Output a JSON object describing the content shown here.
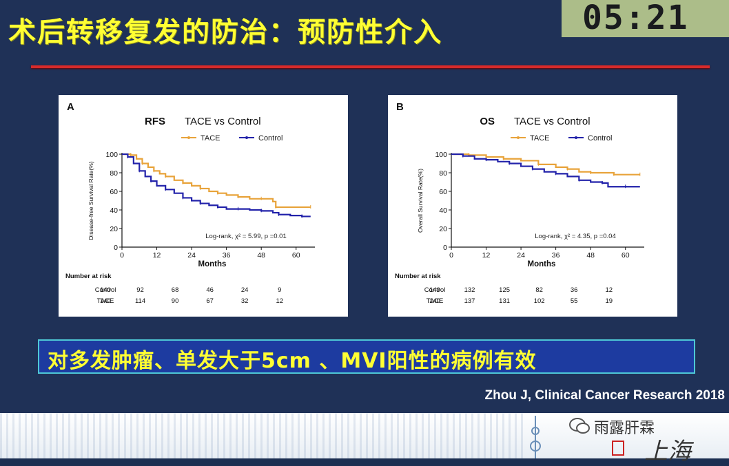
{
  "slide": {
    "title": "术后转移复发的防治：预防性介入",
    "timer": "05:21",
    "banner": "对多发肿瘤、单发大于5cm 、MVI阳性的病例有效",
    "citation": "Zhou J, Clinical Cancer Research 2018",
    "watermark": "雨露肝霖",
    "signature": "上海",
    "colors": {
      "background": "#1f3157",
      "title": "#ffff33",
      "rule": "#d72a2a",
      "banner": "#1d3ba0",
      "tace": "#e8a33a",
      "control": "#2222aa"
    }
  },
  "chart_data": [
    {
      "type": "line",
      "panel_label": "A",
      "title_left": "RFS",
      "title_right": "TACE vs Control",
      "xlabel": "Months",
      "ylabel": "Disease-free Survival Rate(%)",
      "xlim": [
        0,
        66
      ],
      "ylim": [
        0,
        100
      ],
      "xticks": [
        "0",
        "12",
        "24",
        "36",
        "48",
        "60"
      ],
      "yticks": [
        "0",
        "20",
        "40",
        "60",
        "80",
        "100"
      ],
      "annotation": "Log-rank, χ² = 5.99, p =0.01",
      "legend_position": "top-center",
      "series": [
        {
          "name": "TACE",
          "color": "#e8a33a",
          "points": [
            [
              0,
              100
            ],
            [
              3,
              99
            ],
            [
              5,
              95
            ],
            [
              7,
              90
            ],
            [
              9,
              86
            ],
            [
              11,
              82
            ],
            [
              13,
              79
            ],
            [
              15,
              76
            ],
            [
              18,
              72
            ],
            [
              21,
              69
            ],
            [
              24,
              66
            ],
            [
              27,
              63
            ],
            [
              30,
              60
            ],
            [
              33,
              58
            ],
            [
              36,
              56
            ],
            [
              40,
              54
            ],
            [
              44,
              52
            ],
            [
              48,
              52
            ],
            [
              52,
              49
            ],
            [
              53,
              43
            ],
            [
              60,
              43
            ],
            [
              65,
              43
            ]
          ]
        },
        {
          "name": "Control",
          "color": "#2222aa",
          "points": [
            [
              0,
              100
            ],
            [
              2,
              97
            ],
            [
              4,
              90
            ],
            [
              6,
              82
            ],
            [
              8,
              76
            ],
            [
              10,
              71
            ],
            [
              12,
              66
            ],
            [
              15,
              62
            ],
            [
              18,
              58
            ],
            [
              21,
              53
            ],
            [
              24,
              50
            ],
            [
              27,
              47
            ],
            [
              30,
              45
            ],
            [
              33,
              43
            ],
            [
              36,
              41
            ],
            [
              40,
              41
            ],
            [
              44,
              40
            ],
            [
              48,
              39
            ],
            [
              52,
              37
            ],
            [
              54,
              35
            ],
            [
              58,
              34
            ],
            [
              62,
              33
            ],
            [
              65,
              33
            ]
          ]
        }
      ],
      "risk_table": {
        "header": "Number at risk",
        "rows": [
          {
            "label": "Control",
            "values": [
              "140",
              "92",
              "68",
              "46",
              "24",
              "9"
            ]
          },
          {
            "label": "TACE",
            "values": [
              "140",
              "114",
              "90",
              "67",
              "32",
              "12"
            ]
          }
        ]
      }
    },
    {
      "type": "line",
      "panel_label": "B",
      "title_left": "OS",
      "title_right": "TACE vs Control",
      "xlabel": "Months",
      "ylabel": "Overall Survival Rate(%)",
      "xlim": [
        0,
        66
      ],
      "ylim": [
        0,
        100
      ],
      "xticks": [
        "0",
        "12",
        "24",
        "36",
        "48",
        "60"
      ],
      "yticks": [
        "0",
        "20",
        "40",
        "60",
        "80",
        "100"
      ],
      "annotation": "Log-rank, χ² = 4.35, p =0.04",
      "legend_position": "top-center",
      "series": [
        {
          "name": "TACE",
          "color": "#e8a33a",
          "points": [
            [
              0,
              100
            ],
            [
              6,
              99
            ],
            [
              12,
              97
            ],
            [
              18,
              95
            ],
            [
              24,
              93
            ],
            [
              30,
              89
            ],
            [
              36,
              86
            ],
            [
              40,
              84
            ],
            [
              44,
              81
            ],
            [
              48,
              80
            ],
            [
              52,
              80
            ],
            [
              56,
              78
            ],
            [
              60,
              78
            ],
            [
              65,
              78
            ]
          ]
        },
        {
          "name": "Control",
          "color": "#2222aa",
          "points": [
            [
              0,
              100
            ],
            [
              4,
              98
            ],
            [
              8,
              95
            ],
            [
              12,
              94
            ],
            [
              16,
              92
            ],
            [
              20,
              90
            ],
            [
              24,
              87
            ],
            [
              28,
              84
            ],
            [
              32,
              81
            ],
            [
              36,
              79
            ],
            [
              40,
              76
            ],
            [
              44,
              72
            ],
            [
              48,
              70
            ],
            [
              52,
              69
            ],
            [
              54,
              65
            ],
            [
              60,
              65
            ],
            [
              65,
              65
            ]
          ]
        }
      ],
      "risk_table": {
        "header": "Number at risk",
        "rows": [
          {
            "label": "Control",
            "values": [
              "140",
              "132",
              "125",
              "82",
              "36",
              "12"
            ]
          },
          {
            "label": "TACE",
            "values": [
              "140",
              "137",
              "131",
              "102",
              "55",
              "19"
            ]
          }
        ]
      }
    }
  ]
}
